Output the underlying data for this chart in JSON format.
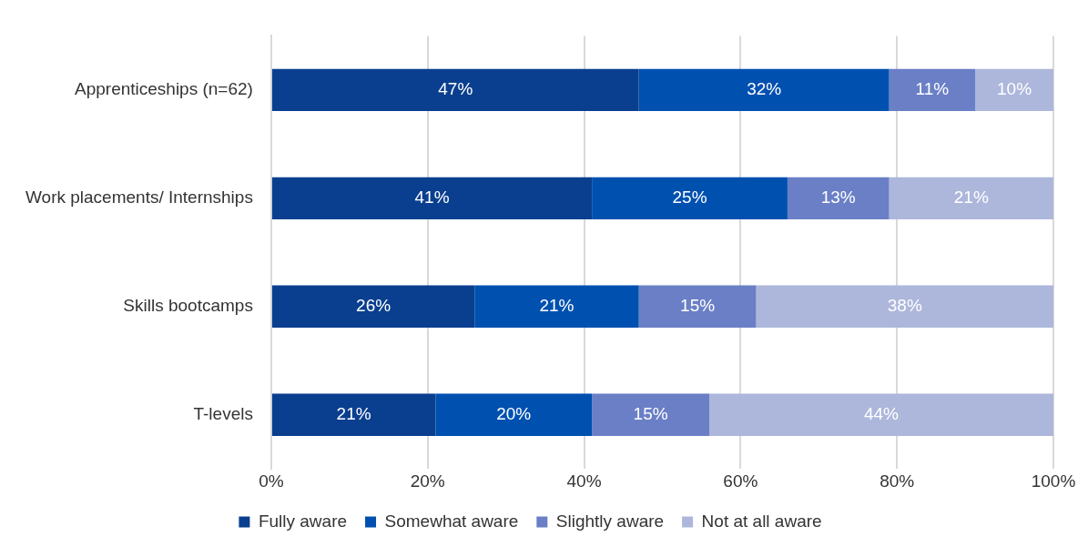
{
  "chart_data": {
    "type": "bar",
    "orientation": "horizontal",
    "stacked": true,
    "categories": [
      "Apprenticeships (n=62)",
      "Work placements/ Internships",
      "Skills bootcamps",
      "T-levels"
    ],
    "series": [
      {
        "name": "Fully aware",
        "color": "#0a3f8f",
        "values": [
          47,
          41,
          26,
          21
        ],
        "value_labels": [
          "47%",
          "41%",
          "26%",
          "21%"
        ]
      },
      {
        "name": "Somewhat aware",
        "color": "#0050b0",
        "values": [
          32,
          25,
          21,
          20
        ],
        "value_labels": [
          "32%",
          "25%",
          "21%",
          "20%"
        ]
      },
      {
        "name": "Slightly aware",
        "color": "#6a7fc6",
        "values": [
          11,
          13,
          15,
          15
        ],
        "value_labels": [
          "11%",
          "13%",
          "15%",
          "15%"
        ]
      },
      {
        "name": "Not at all aware",
        "color": "#adb7db",
        "values": [
          10,
          21,
          38,
          44
        ],
        "value_labels": [
          "10%",
          "21%",
          "38%",
          "44%"
        ]
      }
    ],
    "xlim": [
      0,
      100
    ],
    "xticks": [
      {
        "value": 0,
        "label": "0%"
      },
      {
        "value": 20,
        "label": "20%"
      },
      {
        "value": 40,
        "label": "40%"
      },
      {
        "value": 60,
        "label": "60%"
      },
      {
        "value": 80,
        "label": "80%"
      },
      {
        "value": 100,
        "label": "100%"
      }
    ],
    "grid": "x",
    "legend": "bottom"
  }
}
